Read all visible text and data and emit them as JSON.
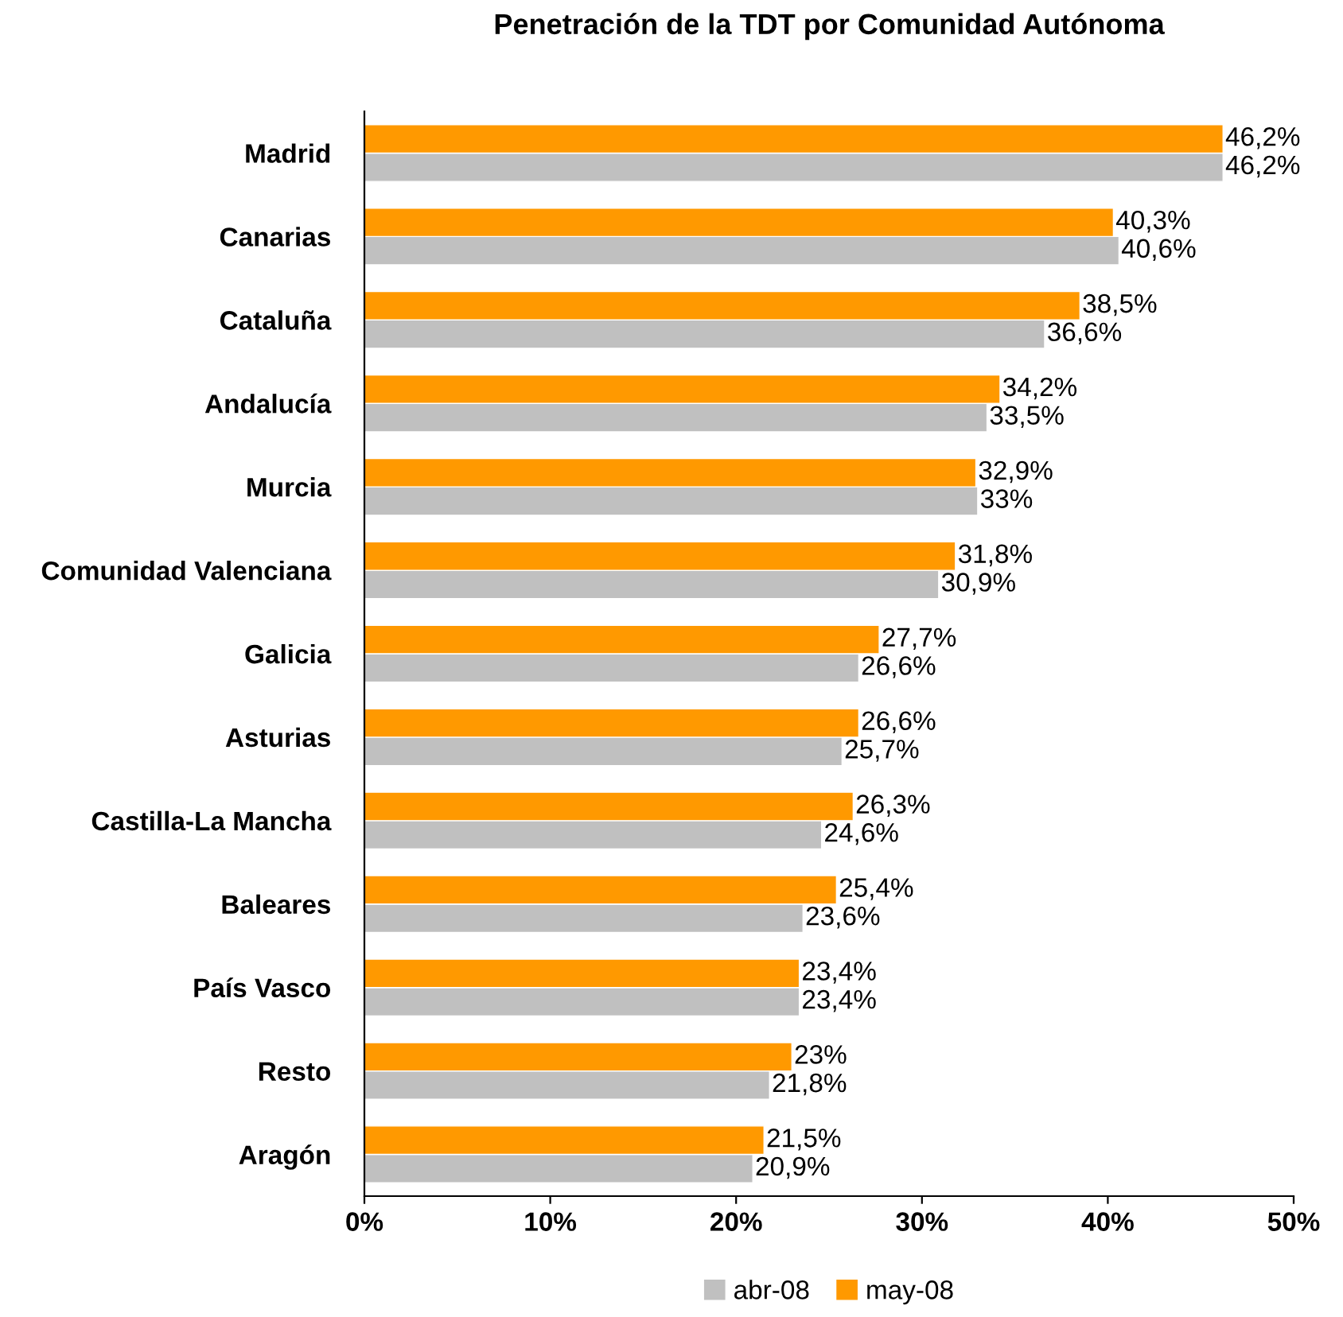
{
  "chart_data": {
    "type": "bar",
    "orientation": "horizontal",
    "title": "Penetración de la TDT por Comunidad Autónoma",
    "categories": [
      "Madrid",
      "Canarias",
      "Cataluña",
      "Andalucía",
      "Murcia",
      "Comunidad Valenciana",
      "Galicia",
      "Asturias",
      "Castilla-La Mancha",
      "Baleares",
      "País Vasco",
      "Resto",
      "Aragón"
    ],
    "series": [
      {
        "name": "abr-08",
        "color": "#c0c0c0",
        "values": [
          46.2,
          40.6,
          36.6,
          33.5,
          33,
          30.9,
          26.6,
          25.7,
          24.6,
          23.6,
          23.4,
          21.8,
          20.9
        ],
        "value_labels": [
          "46,2%",
          "40,6%",
          "36,6%",
          "33,5%",
          "33%",
          "30,9%",
          "26,6%",
          "25,7%",
          "24,6%",
          "23,6%",
          "23,4%",
          "21,8%",
          "20,9%"
        ]
      },
      {
        "name": "may-08",
        "color": "#ff9900",
        "values": [
          46.2,
          40.3,
          38.5,
          34.2,
          32.9,
          31.8,
          27.7,
          26.6,
          26.3,
          25.4,
          23.4,
          23,
          21.5
        ],
        "value_labels": [
          "46,2%",
          "40,3%",
          "38,5%",
          "34,2%",
          "32,9%",
          "31,8%",
          "27,7%",
          "26,6%",
          "26,3%",
          "25,4%",
          "23,4%",
          "23%",
          "21,5%"
        ]
      }
    ],
    "xlim": [
      0,
      50
    ],
    "xticks": [
      {
        "value": 0,
        "label": "0%"
      },
      {
        "value": 10,
        "label": "10%"
      },
      {
        "value": 20,
        "label": "20%"
      },
      {
        "value": 30,
        "label": "30%"
      },
      {
        "value": 40,
        "label": "40%"
      },
      {
        "value": 50,
        "label": "50%"
      }
    ],
    "grid": false,
    "legend": "bottom"
  }
}
